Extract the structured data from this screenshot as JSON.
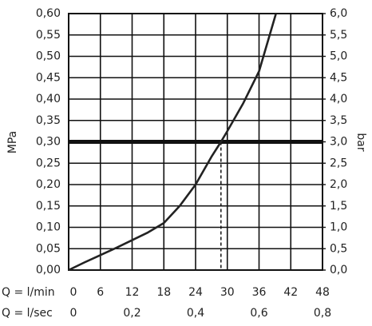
{
  "chart_data": {
    "type": "line",
    "y_label": "MPa",
    "y2_label": "bar",
    "x_label": "Q = l/min",
    "x2_label": "Q = l/sec",
    "x": [
      0,
      3,
      6,
      9,
      12,
      15,
      18,
      21,
      24,
      27,
      28.8,
      30,
      33,
      36,
      39.2
    ],
    "series": [
      {
        "color": "#222222",
        "values": [
          0,
          0.018,
          0.035,
          0.052,
          0.07,
          0.088,
          0.11,
          0.15,
          0.2,
          0.265,
          0.3,
          0.325,
          0.39,
          0.465,
          0.6
        ]
      }
    ],
    "threshold": 0.3,
    "threshold_x": 28.8,
    "xlim": [
      0,
      48
    ],
    "xticks": [
      0,
      6,
      12,
      18,
      24,
      30,
      36,
      42,
      48
    ],
    "x2lim": [
      0,
      0.8
    ],
    "x2ticks": [
      0,
      {
        "value": 0.2,
        "label": "0,2"
      },
      {
        "value": 0.4,
        "label": "0,4"
      },
      {
        "value": 0.6,
        "label": "0,6"
      },
      {
        "value": 0.8,
        "label": "0,8"
      }
    ],
    "ylim": [
      0,
      0.6
    ],
    "yticks": [
      {
        "value": 0,
        "label": "0,00"
      },
      {
        "value": 0.05,
        "label": "0,05"
      },
      {
        "value": 0.1,
        "label": "0,10"
      },
      {
        "value": 0.15,
        "label": "0,15"
      },
      {
        "value": 0.2,
        "label": "0,20"
      },
      {
        "value": 0.25,
        "label": "0,25"
      },
      {
        "value": 0.3,
        "label": "0,30"
      },
      {
        "value": 0.35,
        "label": "0,35"
      },
      {
        "value": 0.4,
        "label": "0,40"
      },
      {
        "value": 0.45,
        "label": "0,45"
      },
      {
        "value": 0.5,
        "label": "0,50"
      },
      {
        "value": 0.55,
        "label": "0,55"
      },
      {
        "value": 0.6,
        "label": "0,60"
      }
    ],
    "y2lim": [
      0,
      6
    ],
    "y2ticks": [
      {
        "value": 0,
        "label": "0,0"
      },
      {
        "value": 0.5,
        "label": "0,5"
      },
      {
        "value": 1,
        "label": "1,0"
      },
      {
        "value": 1.5,
        "label": "1,5"
      },
      {
        "value": 2,
        "label": "2,0"
      },
      {
        "value": 2.5,
        "label": "2,5"
      },
      {
        "value": 3,
        "label": "3,0"
      },
      {
        "value": 3.5,
        "label": "3,5"
      },
      {
        "value": 4,
        "label": "4,0"
      },
      {
        "value": 4.5,
        "label": "4,5"
      },
      {
        "value": 5,
        "label": "5,0"
      },
      {
        "value": 5.5,
        "label": "5,5"
      },
      {
        "value": 6,
        "label": "6,0"
      }
    ],
    "grid": true
  }
}
